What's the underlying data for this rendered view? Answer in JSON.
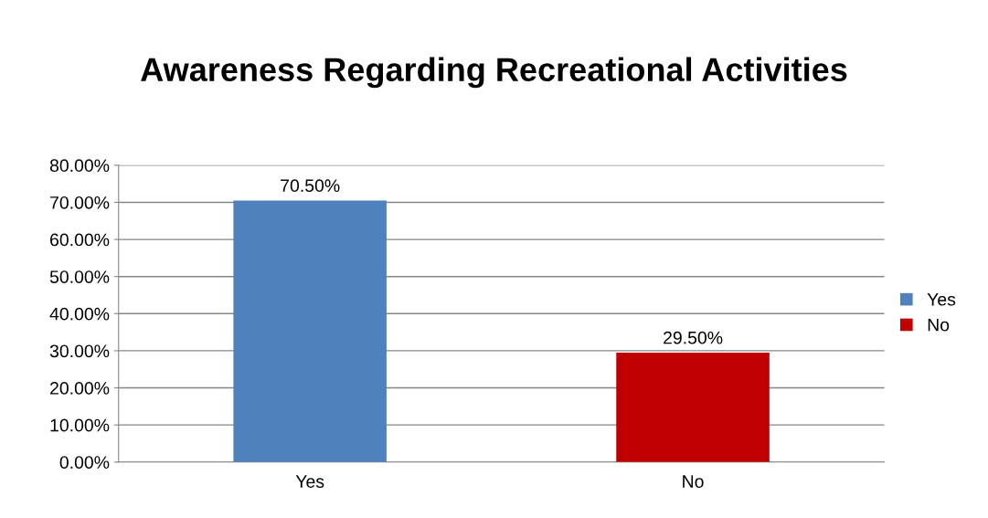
{
  "chart_data": {
    "type": "bar",
    "title": "Awareness Regarding Recreational Activities",
    "categories": [
      "Yes",
      "No"
    ],
    "series": [
      {
        "name": "Yes",
        "color": "#4f81bd",
        "values": [
          70.5,
          null
        ],
        "value_labels": [
          "70.50%",
          null
        ]
      },
      {
        "name": "No",
        "color": "#c00000",
        "values": [
          null,
          29.5
        ],
        "value_labels": [
          null,
          "29.50%"
        ]
      }
    ],
    "ylim": [
      0,
      80
    ],
    "yticks": [
      {
        "value": 0,
        "label": "0.00%"
      },
      {
        "value": 10,
        "label": "10.00%"
      },
      {
        "value": 20,
        "label": "20.00%"
      },
      {
        "value": 30,
        "label": "30.00%"
      },
      {
        "value": 40,
        "label": "40.00%"
      },
      {
        "value": 50,
        "label": "50.00%"
      },
      {
        "value": 60,
        "label": "60.00%"
      },
      {
        "value": 70,
        "label": "70.00%"
      },
      {
        "value": 80,
        "label": "80.00%"
      }
    ],
    "grid": "y",
    "legend": "right"
  }
}
